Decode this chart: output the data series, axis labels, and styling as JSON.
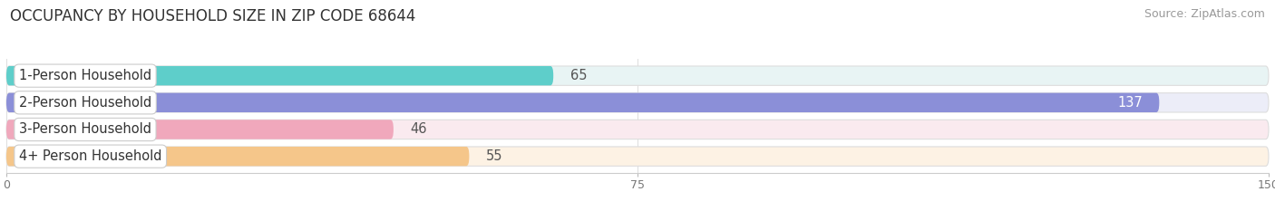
{
  "title": "OCCUPANCY BY HOUSEHOLD SIZE IN ZIP CODE 68644",
  "source": "Source: ZipAtlas.com",
  "categories": [
    "1-Person Household",
    "2-Person Household",
    "3-Person Household",
    "4+ Person Household"
  ],
  "values": [
    65,
    137,
    46,
    55
  ],
  "bar_colors": [
    "#5ECECA",
    "#8B8FD8",
    "#F0A8BC",
    "#F5C68A"
  ],
  "bar_bg_colors": [
    "#E8F4F4",
    "#ECEDF8",
    "#FAEAEF",
    "#FDF2E4"
  ],
  "xlim": [
    0,
    150
  ],
  "xticks": [
    0,
    75,
    150
  ],
  "label_fontsize": 10.5,
  "value_fontsize": 10.5,
  "title_fontsize": 12,
  "source_fontsize": 9,
  "background_color": "#FFFFFF",
  "bar_height": 0.72,
  "bar_gap": 1.0,
  "figsize": [
    14.06,
    2.33
  ],
  "dpi": 100
}
